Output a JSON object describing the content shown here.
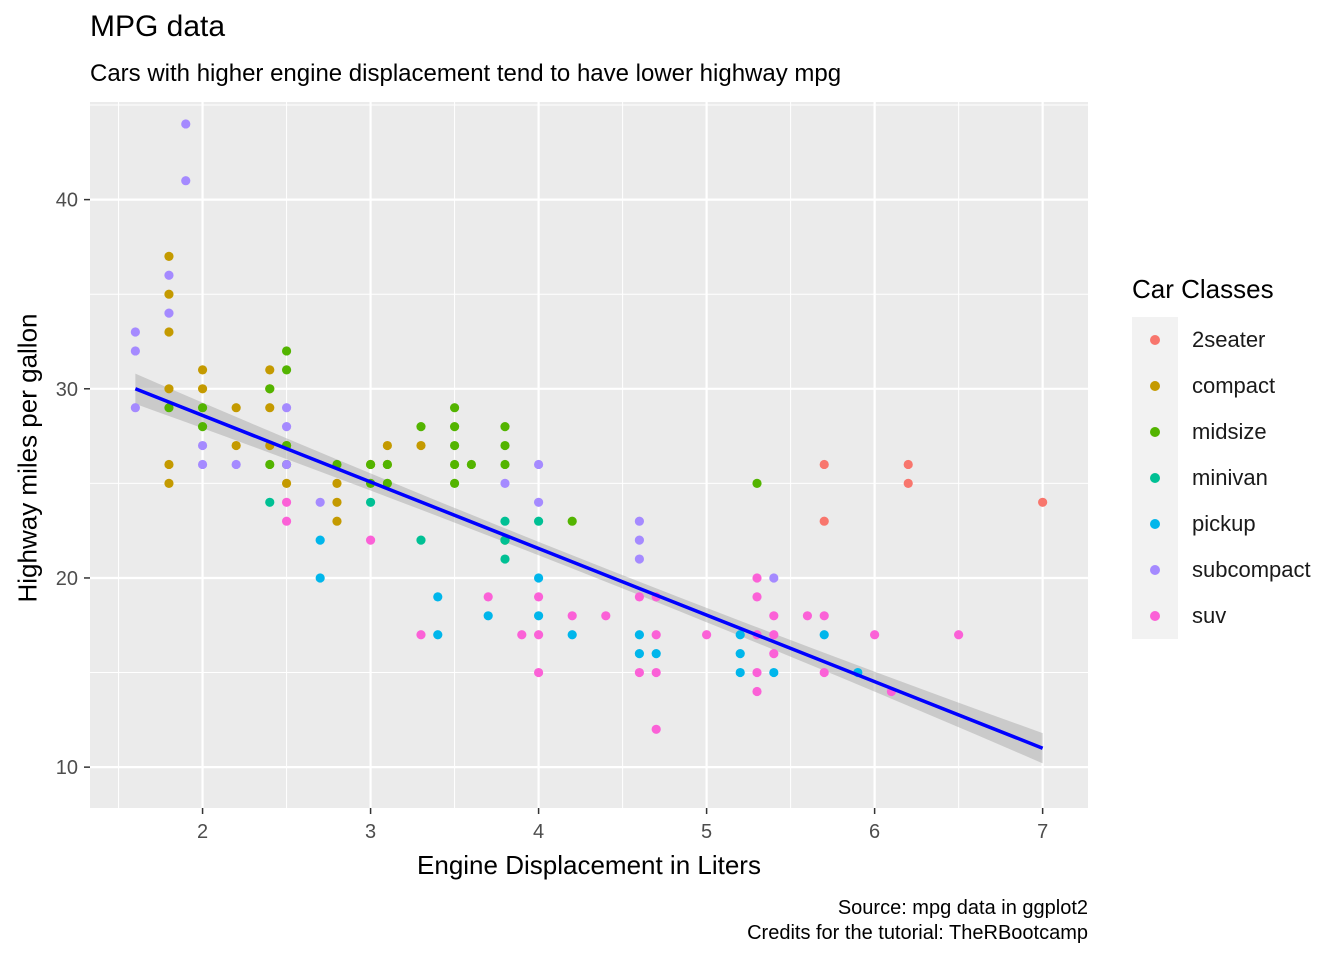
{
  "chart_data": {
    "type": "scatter",
    "title": "MPG data",
    "subtitle": "Cars with higher engine displacement tend to have lower highway mpg",
    "xlabel": "Engine Displacement in Liters",
    "ylabel": "Highway miles per gallon",
    "caption_lines": [
      "Source: mpg data in ggplot2",
      "Credits for the tutorial: TheRBootcamp"
    ],
    "xlim": [
      1.33,
      7.27
    ],
    "ylim": [
      7.84,
      45.16
    ],
    "x_ticks": [
      2,
      3,
      4,
      5,
      6,
      7
    ],
    "y_ticks": [
      10,
      20,
      30,
      40
    ],
    "grid": true,
    "legend": {
      "title": "Car Classes",
      "position": "right",
      "entries": [
        {
          "name": "2seater",
          "color": "#F8766D"
        },
        {
          "name": "compact",
          "color": "#C49A00"
        },
        {
          "name": "midsize",
          "color": "#53B400"
        },
        {
          "name": "minivan",
          "color": "#00C094"
        },
        {
          "name": "pickup",
          "color": "#00B6EB"
        },
        {
          "name": "subcompact",
          "color": "#A58AFF"
        },
        {
          "name": "suv",
          "color": "#FB61D7"
        }
      ]
    },
    "trend_line": {
      "color": "#0000FF",
      "band_color": "#999999",
      "x": [
        1.6,
        7.0
      ],
      "y": [
        30.0,
        11.0
      ],
      "ci_halfwidth_ends": 0.8,
      "ci_halfwidth_center": 0.35
    },
    "points": [
      {
        "class": "2seater",
        "x": 5.7,
        "y": 26
      },
      {
        "class": "2seater",
        "x": 5.7,
        "y": 23
      },
      {
        "class": "2seater",
        "x": 6.2,
        "y": 26
      },
      {
        "class": "2seater",
        "x": 6.2,
        "y": 25
      },
      {
        "class": "2seater",
        "x": 7.0,
        "y": 24
      },
      {
        "class": "compact",
        "x": 1.8,
        "y": 37
      },
      {
        "class": "compact",
        "x": 1.8,
        "y": 35
      },
      {
        "class": "compact",
        "x": 1.8,
        "y": 33
      },
      {
        "class": "compact",
        "x": 1.8,
        "y": 30
      },
      {
        "class": "compact",
        "x": 1.8,
        "y": 26
      },
      {
        "class": "compact",
        "x": 1.8,
        "y": 25
      },
      {
        "class": "compact",
        "x": 2.0,
        "y": 31
      },
      {
        "class": "compact",
        "x": 2.0,
        "y": 30
      },
      {
        "class": "compact",
        "x": 2.2,
        "y": 29
      },
      {
        "class": "compact",
        "x": 2.2,
        "y": 27
      },
      {
        "class": "compact",
        "x": 2.4,
        "y": 31
      },
      {
        "class": "compact",
        "x": 2.4,
        "y": 30
      },
      {
        "class": "compact",
        "x": 2.4,
        "y": 29
      },
      {
        "class": "compact",
        "x": 2.4,
        "y": 27
      },
      {
        "class": "compact",
        "x": 2.5,
        "y": 27
      },
      {
        "class": "compact",
        "x": 2.5,
        "y": 25
      },
      {
        "class": "compact",
        "x": 2.8,
        "y": 25
      },
      {
        "class": "compact",
        "x": 2.8,
        "y": 24
      },
      {
        "class": "compact",
        "x": 2.8,
        "y": 23
      },
      {
        "class": "compact",
        "x": 3.0,
        "y": 26
      },
      {
        "class": "compact",
        "x": 3.1,
        "y": 27
      },
      {
        "class": "compact",
        "x": 3.1,
        "y": 26
      },
      {
        "class": "compact",
        "x": 3.3,
        "y": 27
      },
      {
        "class": "midsize",
        "x": 1.8,
        "y": 29
      },
      {
        "class": "midsize",
        "x": 2.0,
        "y": 29
      },
      {
        "class": "midsize",
        "x": 2.0,
        "y": 28
      },
      {
        "class": "midsize",
        "x": 2.4,
        "y": 30
      },
      {
        "class": "midsize",
        "x": 2.4,
        "y": 26
      },
      {
        "class": "midsize",
        "x": 2.5,
        "y": 32
      },
      {
        "class": "midsize",
        "x": 2.5,
        "y": 31
      },
      {
        "class": "midsize",
        "x": 2.5,
        "y": 27
      },
      {
        "class": "midsize",
        "x": 2.5,
        "y": 26
      },
      {
        "class": "midsize",
        "x": 2.8,
        "y": 26
      },
      {
        "class": "midsize",
        "x": 3.0,
        "y": 26
      },
      {
        "class": "midsize",
        "x": 3.0,
        "y": 25
      },
      {
        "class": "midsize",
        "x": 3.1,
        "y": 26
      },
      {
        "class": "midsize",
        "x": 3.1,
        "y": 25
      },
      {
        "class": "midsize",
        "x": 3.3,
        "y": 28
      },
      {
        "class": "midsize",
        "x": 3.5,
        "y": 29
      },
      {
        "class": "midsize",
        "x": 3.5,
        "y": 28
      },
      {
        "class": "midsize",
        "x": 3.5,
        "y": 27
      },
      {
        "class": "midsize",
        "x": 3.5,
        "y": 26
      },
      {
        "class": "midsize",
        "x": 3.5,
        "y": 25
      },
      {
        "class": "midsize",
        "x": 3.6,
        "y": 26
      },
      {
        "class": "midsize",
        "x": 3.8,
        "y": 28
      },
      {
        "class": "midsize",
        "x": 3.8,
        "y": 27
      },
      {
        "class": "midsize",
        "x": 3.8,
        "y": 26
      },
      {
        "class": "midsize",
        "x": 3.8,
        "y": 22
      },
      {
        "class": "midsize",
        "x": 4.2,
        "y": 23
      },
      {
        "class": "midsize",
        "x": 5.3,
        "y": 25
      },
      {
        "class": "minivan",
        "x": 2.4,
        "y": 24
      },
      {
        "class": "minivan",
        "x": 3.0,
        "y": 24
      },
      {
        "class": "minivan",
        "x": 3.3,
        "y": 22
      },
      {
        "class": "minivan",
        "x": 3.8,
        "y": 23
      },
      {
        "class": "minivan",
        "x": 3.8,
        "y": 22
      },
      {
        "class": "minivan",
        "x": 3.8,
        "y": 21
      },
      {
        "class": "minivan",
        "x": 4.0,
        "y": 23
      },
      {
        "class": "pickup",
        "x": 2.7,
        "y": 22
      },
      {
        "class": "pickup",
        "x": 2.7,
        "y": 20
      },
      {
        "class": "pickup",
        "x": 3.4,
        "y": 19
      },
      {
        "class": "pickup",
        "x": 3.4,
        "y": 17
      },
      {
        "class": "pickup",
        "x": 3.7,
        "y": 18
      },
      {
        "class": "pickup",
        "x": 4.0,
        "y": 20
      },
      {
        "class": "pickup",
        "x": 4.0,
        "y": 18
      },
      {
        "class": "pickup",
        "x": 4.2,
        "y": 17
      },
      {
        "class": "pickup",
        "x": 4.6,
        "y": 17
      },
      {
        "class": "pickup",
        "x": 4.6,
        "y": 16
      },
      {
        "class": "pickup",
        "x": 4.7,
        "y": 16
      },
      {
        "class": "pickup",
        "x": 5.2,
        "y": 17
      },
      {
        "class": "pickup",
        "x": 5.2,
        "y": 16
      },
      {
        "class": "pickup",
        "x": 5.2,
        "y": 15
      },
      {
        "class": "pickup",
        "x": 5.4,
        "y": 15
      },
      {
        "class": "pickup",
        "x": 5.7,
        "y": 17
      },
      {
        "class": "pickup",
        "x": 5.9,
        "y": 15
      },
      {
        "class": "subcompact",
        "x": 1.6,
        "y": 33
      },
      {
        "class": "subcompact",
        "x": 1.6,
        "y": 32
      },
      {
        "class": "subcompact",
        "x": 1.6,
        "y": 29
      },
      {
        "class": "subcompact",
        "x": 1.8,
        "y": 36
      },
      {
        "class": "subcompact",
        "x": 1.8,
        "y": 34
      },
      {
        "class": "subcompact",
        "x": 1.9,
        "y": 44
      },
      {
        "class": "subcompact",
        "x": 1.9,
        "y": 41
      },
      {
        "class": "subcompact",
        "x": 2.0,
        "y": 27
      },
      {
        "class": "subcompact",
        "x": 2.0,
        "y": 26
      },
      {
        "class": "subcompact",
        "x": 2.2,
        "y": 26
      },
      {
        "class": "subcompact",
        "x": 2.5,
        "y": 29
      },
      {
        "class": "subcompact",
        "x": 2.5,
        "y": 28
      },
      {
        "class": "subcompact",
        "x": 2.5,
        "y": 26
      },
      {
        "class": "subcompact",
        "x": 2.7,
        "y": 24
      },
      {
        "class": "subcompact",
        "x": 3.8,
        "y": 25
      },
      {
        "class": "subcompact",
        "x": 4.0,
        "y": 26
      },
      {
        "class": "subcompact",
        "x": 4.0,
        "y": 24
      },
      {
        "class": "subcompact",
        "x": 4.6,
        "y": 23
      },
      {
        "class": "subcompact",
        "x": 4.6,
        "y": 22
      },
      {
        "class": "subcompact",
        "x": 4.6,
        "y": 21
      },
      {
        "class": "subcompact",
        "x": 5.4,
        "y": 20
      },
      {
        "class": "suv",
        "x": 2.5,
        "y": 24
      },
      {
        "class": "suv",
        "x": 2.5,
        "y": 23
      },
      {
        "class": "suv",
        "x": 3.0,
        "y": 22
      },
      {
        "class": "suv",
        "x": 3.3,
        "y": 17
      },
      {
        "class": "suv",
        "x": 3.7,
        "y": 19
      },
      {
        "class": "suv",
        "x": 3.9,
        "y": 17
      },
      {
        "class": "suv",
        "x": 4.0,
        "y": 19
      },
      {
        "class": "suv",
        "x": 4.0,
        "y": 17
      },
      {
        "class": "suv",
        "x": 4.0,
        "y": 15
      },
      {
        "class": "suv",
        "x": 4.2,
        "y": 18
      },
      {
        "class": "suv",
        "x": 4.4,
        "y": 18
      },
      {
        "class": "suv",
        "x": 4.6,
        "y": 19
      },
      {
        "class": "suv",
        "x": 4.6,
        "y": 15
      },
      {
        "class": "suv",
        "x": 4.7,
        "y": 19
      },
      {
        "class": "suv",
        "x": 4.7,
        "y": 17
      },
      {
        "class": "suv",
        "x": 4.7,
        "y": 15
      },
      {
        "class": "suv",
        "x": 4.7,
        "y": 12
      },
      {
        "class": "suv",
        "x": 5.0,
        "y": 17
      },
      {
        "class": "suv",
        "x": 5.3,
        "y": 20
      },
      {
        "class": "suv",
        "x": 5.3,
        "y": 19
      },
      {
        "class": "suv",
        "x": 5.3,
        "y": 17
      },
      {
        "class": "suv",
        "x": 5.3,
        "y": 15
      },
      {
        "class": "suv",
        "x": 5.3,
        "y": 14
      },
      {
        "class": "suv",
        "x": 5.4,
        "y": 18
      },
      {
        "class": "suv",
        "x": 5.4,
        "y": 17
      },
      {
        "class": "suv",
        "x": 5.4,
        "y": 16
      },
      {
        "class": "suv",
        "x": 5.6,
        "y": 18
      },
      {
        "class": "suv",
        "x": 5.7,
        "y": 18
      },
      {
        "class": "suv",
        "x": 5.7,
        "y": 15
      },
      {
        "class": "suv",
        "x": 6.0,
        "y": 17
      },
      {
        "class": "suv",
        "x": 6.1,
        "y": 14
      },
      {
        "class": "suv",
        "x": 6.5,
        "y": 17
      }
    ]
  }
}
